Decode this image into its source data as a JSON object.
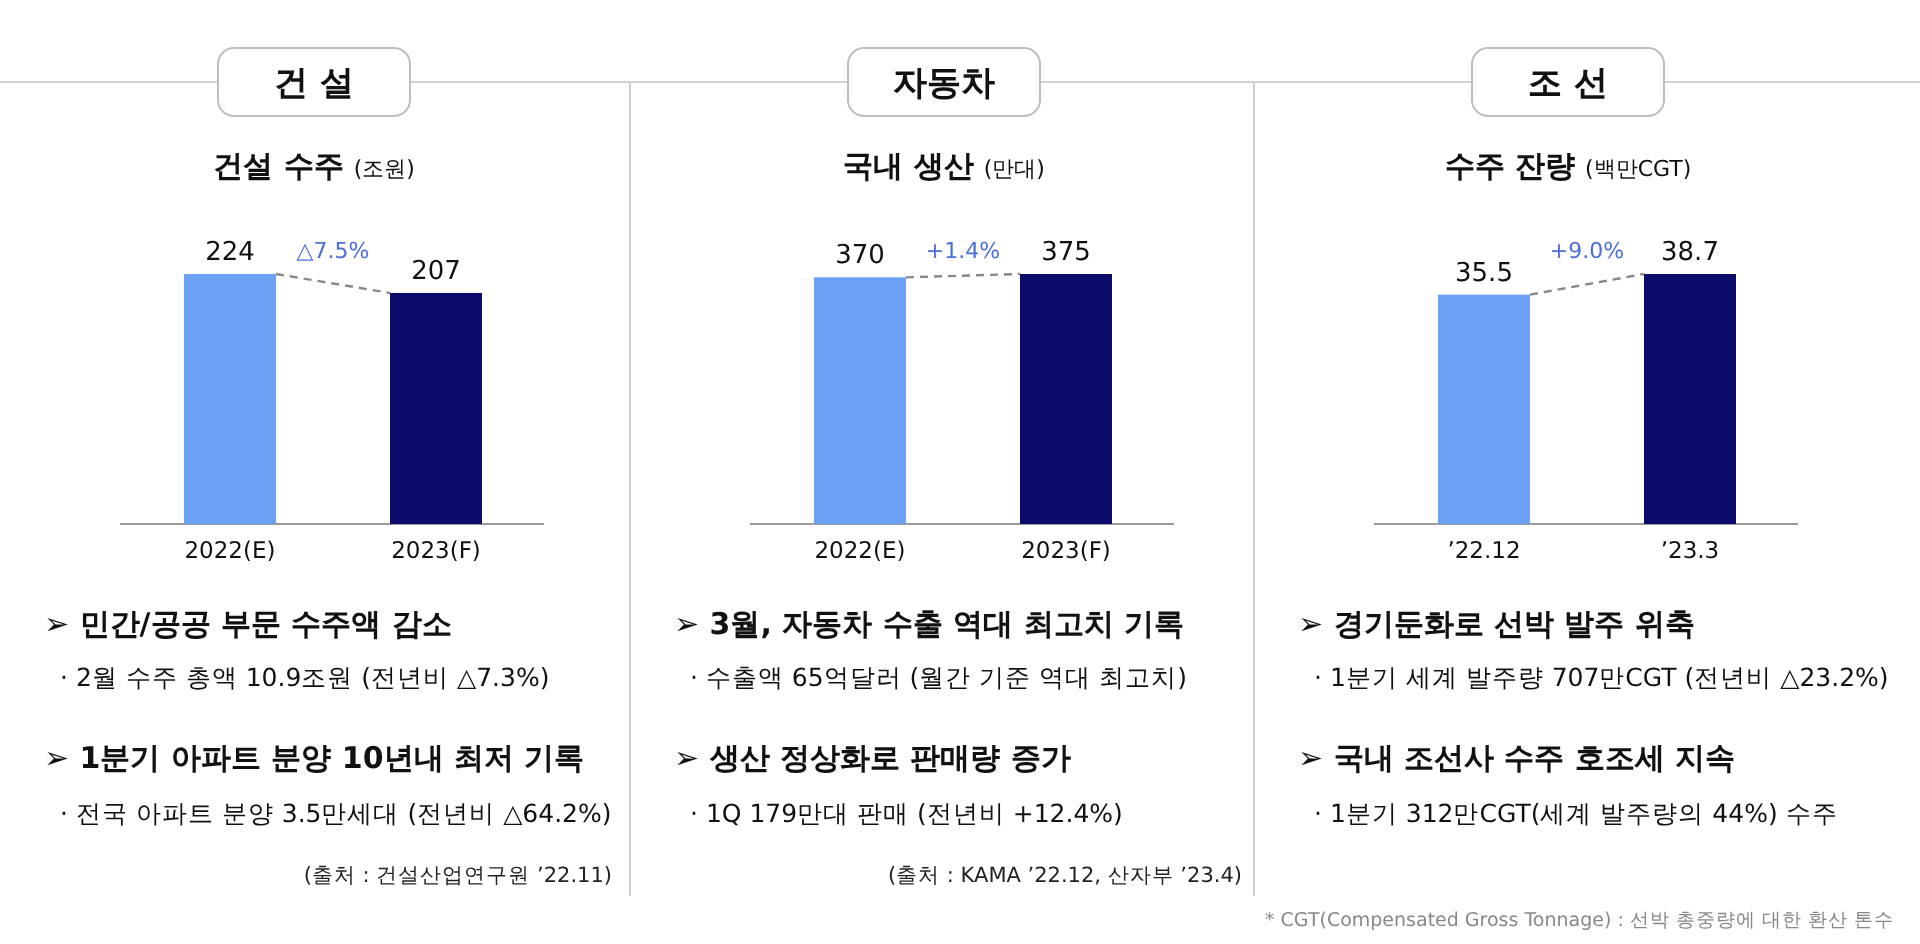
{
  "chart_data": [
    {
      "type": "bar",
      "title": "건 설",
      "subtitle": "건설 수주",
      "ylabel": "(조원)",
      "categories": [
        "2022(E)",
        "2023(F)"
      ],
      "values": [
        224,
        207
      ],
      "colors": [
        "#6aa1f5",
        "#0b0b6b"
      ],
      "data_labels": true,
      "annotations": [
        "△7.5%",
        "➢ 민간/공공 부문 수주액 감소",
        "· 2월 수주 총액 10.9조원 (전년비 △7.3%)",
        "➢ 1분기 아파트 분양 10년내 최저 기록",
        "· 전국 아파트 분양 3.5만세대 (전년비 △64.2%)",
        "(출처 : 건설산업연구원 ’22.11)"
      ]
    },
    {
      "type": "bar",
      "title": "자동차",
      "subtitle": "국내 생산",
      "ylabel": "(만대)",
      "categories": [
        "2022(E)",
        "2023(F)"
      ],
      "values": [
        370,
        375
      ],
      "colors": [
        "#6aa1f5",
        "#0b0b6b"
      ],
      "data_labels": true,
      "annotations": [
        "+1.4%",
        "➢ 3월, 자동차 수출 역대 최고치 기록",
        "· 수출액 65억달러 (월간 기준 역대 최고치)",
        "➢ 생산 정상화로 판매량 증가",
        "· 1Q 179만대 판매 (전년비 +12.4%)",
        "(출처 : KAMA ’22.12, 산자부 ’23.4)"
      ]
    },
    {
      "type": "bar",
      "title": "조 선",
      "subtitle": "수주 잔량",
      "ylabel": "(백만CGT)",
      "categories": [
        "’22.12",
        "’23.3"
      ],
      "values": [
        35.5,
        38.7
      ],
      "colors": [
        "#6aa1f5",
        "#0b0b6b"
      ],
      "data_labels": true,
      "annotations": [
        "+9.0%",
        "➢ 경기둔화로 선박 발주 위축",
        "· 1분기 세계 발주량 707만CGT (전년비 △23.2%)",
        "➢ 국내 조선사 수주 호조세 지속",
        "· 1분기 312만CGT(세계 발주량의 44%) 수주",
        "* CGT(Compensated Gross Tonnage) : 선박 총중량에 대한 환산 톤수"
      ]
    }
  ]
}
